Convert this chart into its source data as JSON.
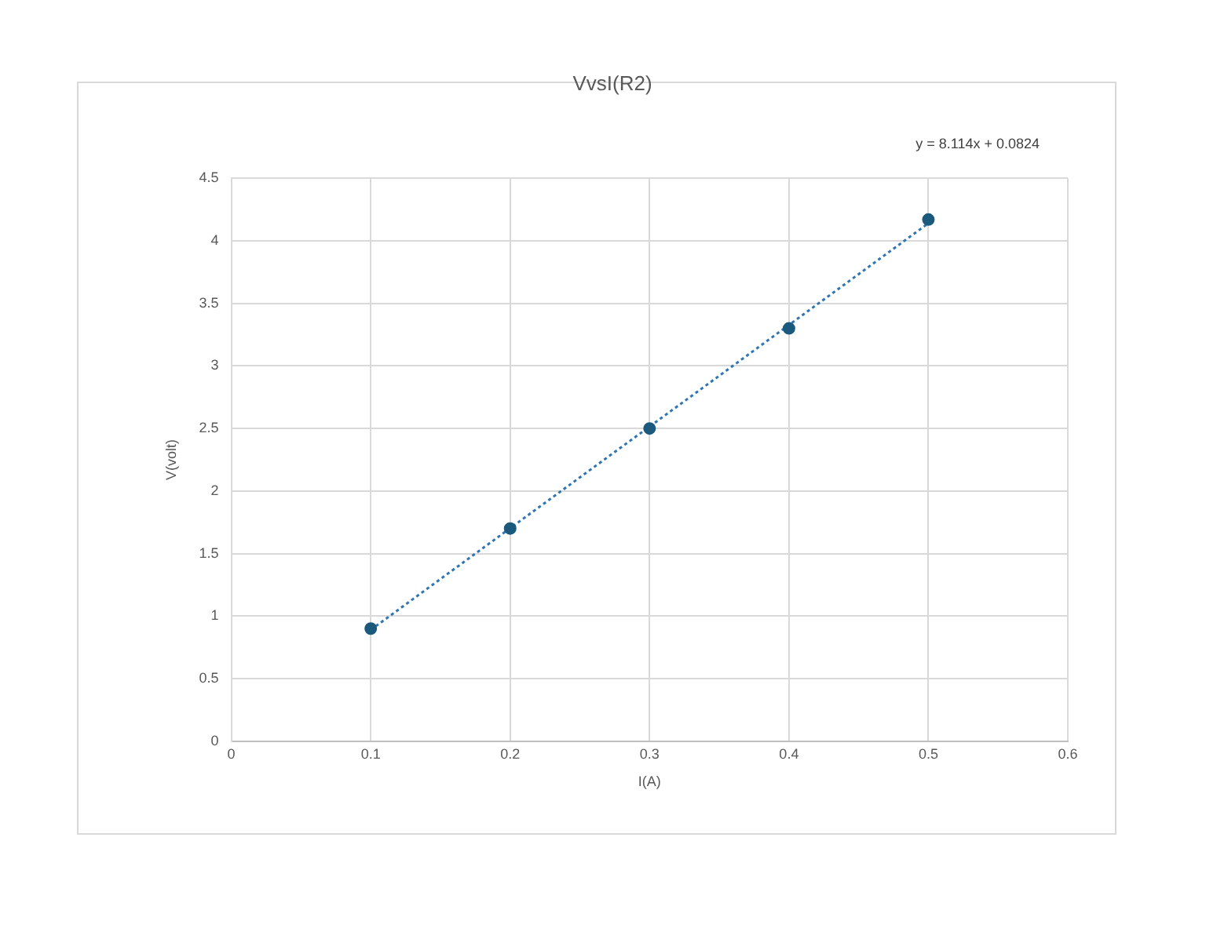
{
  "chart_data": {
    "type": "scatter",
    "title": "VvsI(R2)",
    "xlabel": "I(A)",
    "ylabel": "V(volt)",
    "x": [
      0.1,
      0.2,
      0.3,
      0.4,
      0.5
    ],
    "series": [
      {
        "color": "#1b5a7d",
        "values": [
          0.9,
          1.7,
          2.5,
          3.3,
          4.17
        ],
        "marker": "circle"
      },
      {
        "type": "line",
        "color": "#2e75b6",
        "x": [
          0.1,
          0.5
        ],
        "values": [
          0.89,
          4.14
        ],
        "line_style": "dotted",
        "marker": "none"
      }
    ],
    "xlim": [
      0,
      0.6
    ],
    "xticks": [
      0,
      0.1,
      0.2,
      0.3,
      0.4,
      0.5,
      0.6
    ],
    "ylim": [
      0,
      4.5
    ],
    "yticks": [
      0,
      0.5,
      1,
      1.5,
      2,
      2.5,
      3,
      3.5,
      4,
      4.5
    ],
    "grid": true,
    "legend": false,
    "annotations": [
      "y = 8.114x + 0.0824"
    ]
  }
}
